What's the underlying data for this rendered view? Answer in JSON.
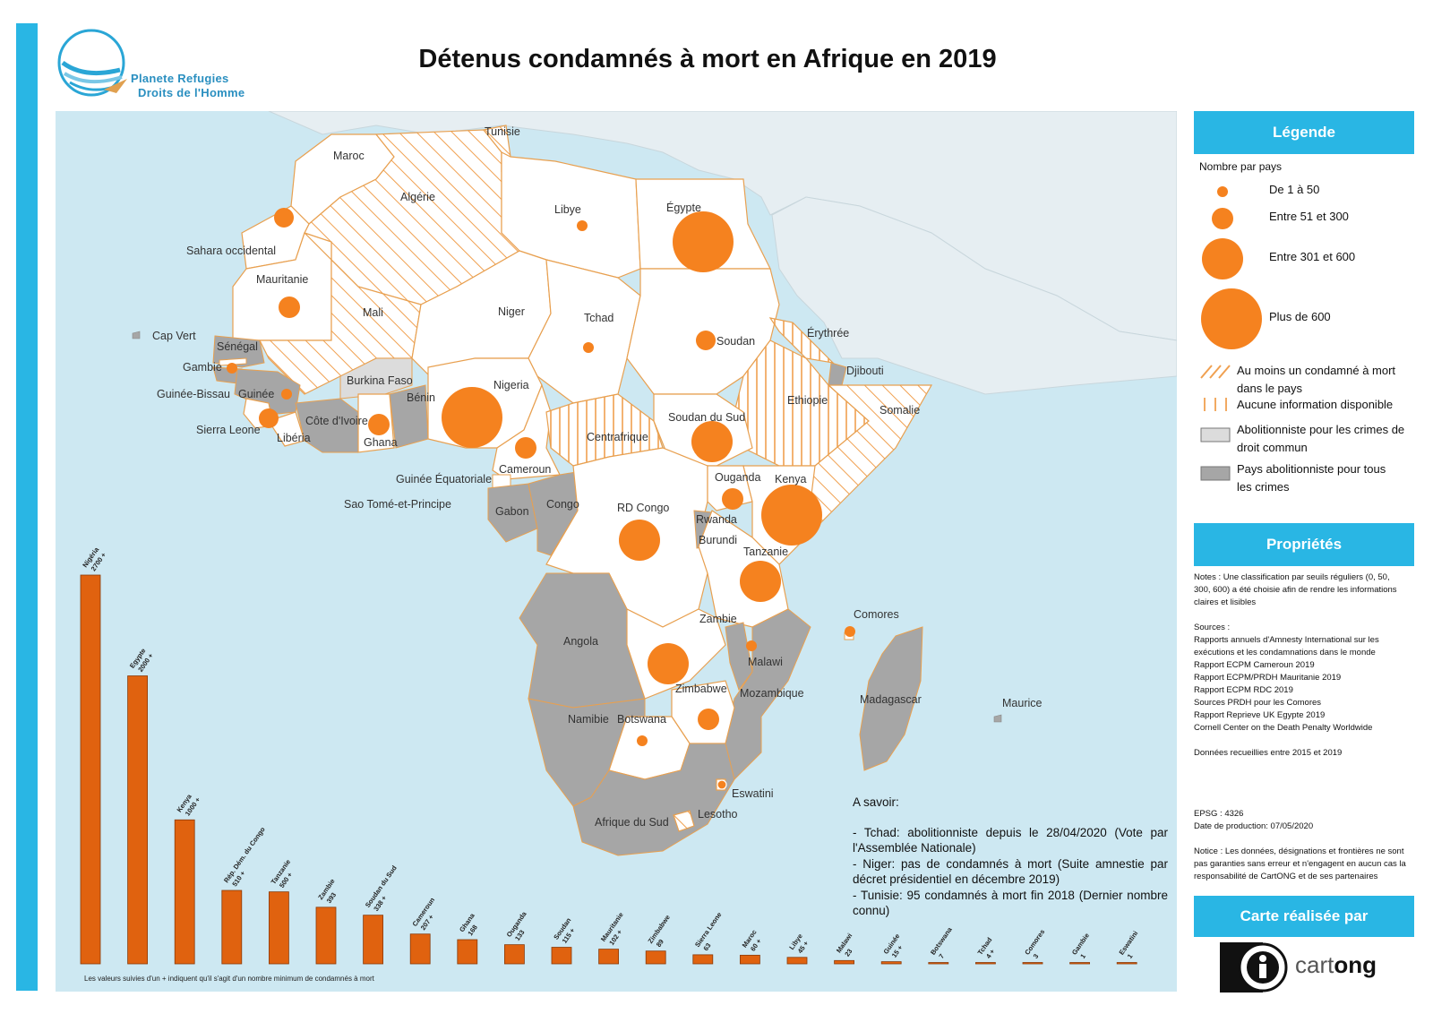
{
  "header": {
    "title": "Détenus condamnés à mort en Afrique en 2019",
    "logo_line1": "Planete Refugies",
    "logo_line2": "Droits de l'Homme"
  },
  "map": {
    "country_labels": {
      "maroc": "Maroc",
      "tunisie": "Tunisie",
      "algerie": "Algérie",
      "libye": "Libye",
      "egypte": "Égypte",
      "sahara": "Sahara occidental",
      "mauritanie": "Mauritanie",
      "mali": "Mali",
      "niger": "Niger",
      "tchad": "Tchad",
      "soudan": "Soudan",
      "erythree": "Érythrée",
      "djibouti": "Djibouti",
      "ethiopie": "Ethiopie",
      "somalie": "Somalie",
      "capvert": "Cap Vert",
      "senegal": "Sénégal",
      "gambie": "Gambie",
      "guineebissau": "Guinée-Bissau",
      "guinee": "Guinée",
      "sierraleone": "Sierra Leone",
      "liberia": "Libéria",
      "cotedivoire": "Côte d'Ivoire",
      "burkina": "Burkina Faso",
      "ghana": "Ghana",
      "benin": "Bénin",
      "nigeria": "Nigeria",
      "cameroun": "Cameroun",
      "centrafrique": "Centrafrique",
      "soudansud": "Soudan du Sud",
      "guineeeq": "Guinée Équatoriale",
      "saotome": "Sao Tomé-et-Principe",
      "gabon": "Gabon",
      "congo": "Congo",
      "rdcongo": "RD Congo",
      "ouganda": "Ouganda",
      "kenya": "Kenya",
      "rwanda": "Rwanda",
      "burundi": "Burundi",
      "tanzanie": "Tanzanie",
      "comores": "Comores",
      "angola": "Angola",
      "zambie": "Zambie",
      "malawi": "Malawi",
      "zimbabwe": "Zimbabwe",
      "mozambique": "Mozambique",
      "madagascar": "Madagascar",
      "maurice": "Maurice",
      "namibie": "Namibie",
      "botswana": "Botswana",
      "eswatini": "Eswatini",
      "lesotho": "Lesotho",
      "afriquesud": "Afrique du Sud"
    },
    "colors": {
      "sea": "#cde8f2",
      "land_other": "#e6eef2",
      "country_fill": "#ffffff",
      "abolitionist_all": "#a6a6a6",
      "abolitionist_common": "#dcdcdc",
      "border": "#e8a050",
      "circle": "#f5821f",
      "hatch": "#f0a050"
    }
  },
  "notes": {
    "title": "A savoir:",
    "items": [
      "- Tchad: abolitionniste depuis le 28/04/2020 (Vote par l'Assemblée Nationale)",
      "- Niger: pas de condamnés à mort (Suite amnestie par décret présidentiel en décembre 2019)",
      "- Tunisie: 95 condamnés à mort fin 2018 (Dernier nombre connu)"
    ]
  },
  "chart_data": {
    "type": "bar",
    "title": "",
    "xlabel": "",
    "ylabel": "",
    "categories": [
      "Nigéria",
      "Egypte",
      "Kenya",
      "Rép. Dém. du Congo",
      "Tanzanie",
      "Zambie",
      "Soudan du Sud",
      "Cameroun",
      "Ghana",
      "Ouganda",
      "Soudan",
      "Mauritanie",
      "Zimbabwe",
      "Sierra Leone",
      "Maroc",
      "Libye",
      "Malawi",
      "Guinée",
      "Botswana",
      "Tchad",
      "Comores",
      "Gambie",
      "Eswatini"
    ],
    "value_labels": [
      "2700 +",
      "2000 +",
      "1000 +",
      "510 +",
      "500 +",
      "393",
      "338 +",
      "207 +",
      "168",
      "133",
      "115 +",
      "102 +",
      "89",
      "63",
      "60 +",
      "45 +",
      "23",
      "15 +",
      "7",
      "4 +",
      "3",
      "1",
      "1"
    ],
    "values": [
      2700,
      2000,
      1000,
      510,
      500,
      393,
      338,
      207,
      168,
      133,
      115,
      102,
      89,
      63,
      60,
      45,
      23,
      15,
      7,
      4,
      3,
      1,
      1
    ],
    "ylim": [
      0,
      2700
    ],
    "footnote": "Les valeurs suivies d'un + indiquent qu'il s'agit d'un nombre minimum de condamnés à mort"
  },
  "legend": {
    "header": "Légende",
    "subtitle": "Nombre par pays",
    "size_classes": [
      {
        "label": "De 1 à 50"
      },
      {
        "label": "Entre 51 et 300"
      },
      {
        "label": "Entre 301 et 600"
      },
      {
        "label": "Plus de 600"
      }
    ],
    "hatched_label": "Au moins un condamné à mort dans le pays",
    "vertical_label": "Aucune information disponible",
    "light_grey_label": "Abolitionniste pour les crimes de droit commun",
    "dark_grey_label": "Pays abolitionniste pour tous les crimes"
  },
  "properties": {
    "header": "Propriétés",
    "notes": "Notes : Une classification par seuils réguliers (0, 50, 300, 600) a été choisie afin de rendre les informations claires et lisibles",
    "sources_title": "Sources :",
    "sources": [
      "Rapports annuels d'Amnesty International sur les exécutions et les condamnations dans le monde",
      "Rapport ECPM Cameroun 2019",
      "Rapport ECPM/PRDH Mauritanie 2019",
      "Rapport ECPM RDC 2019",
      "Sources PRDH pour les Comores",
      "Rapport Reprieve UK Egypte 2019",
      "Cornell Center on the Death Penalty Worldwide"
    ],
    "data_period": "Données recueillies entre 2015 et 2019",
    "epsg": "EPSG : 4326",
    "production_date": "Date de production: 07/05/2020",
    "disclaimer": "Notice : Les données, désignations et frontières ne sont pas garanties sans erreur et n'engagent en aucun cas la responsabilité de CartONG et de ses partenaires"
  },
  "credit": {
    "header": "Carte réalisée par",
    "logo_text_light": "cart",
    "logo_text_bold": "ong"
  }
}
